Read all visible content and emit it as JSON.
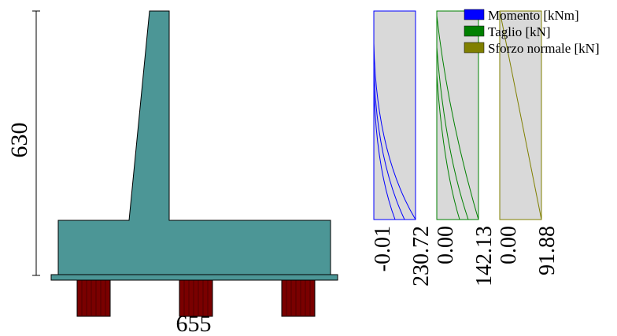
{
  "dimensions": {
    "height_label": "630",
    "width_label": "655"
  },
  "legend": [
    {
      "label": "Momento [kNm]",
      "color": "#0000ff"
    },
    {
      "label": "Taglio [kN]",
      "color": "#008000"
    },
    {
      "label": "Sforzo normale [kN]",
      "color": "#808000"
    }
  ],
  "diagrams": [
    {
      "name": "momento",
      "color": "#0000ff",
      "min_label": "-0.01",
      "max_label": "230.72"
    },
    {
      "name": "taglio",
      "color": "#008000",
      "min_label": "0.00",
      "max_label": "142.13"
    },
    {
      "name": "sforzo-normale",
      "color": "#808000",
      "min_label": "0.00",
      "max_label": "91.88"
    }
  ],
  "colors": {
    "concrete": "#4c9696",
    "piles": "#7a0000",
    "panel_background": "#d9d9d9"
  }
}
